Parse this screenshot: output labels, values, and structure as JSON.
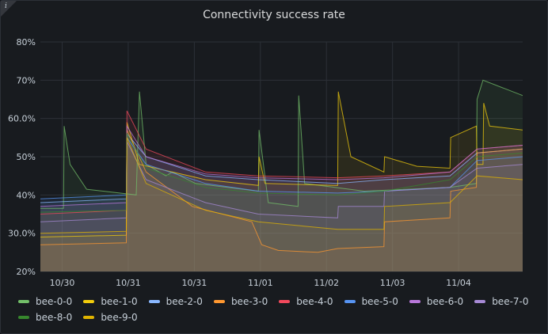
{
  "panel": {
    "title": "Connectivity success rate",
    "info_icon": "info-icon",
    "info_glyph": "i"
  },
  "chart_data": {
    "type": "area",
    "title": "Connectivity success rate",
    "ylim": [
      20,
      80
    ],
    "y_ticks": [
      "20%",
      "30.0%",
      "40%",
      "50%",
      "60.0%",
      "70%",
      "80%"
    ],
    "y_tick_values": [
      20,
      30,
      40,
      50,
      60,
      70,
      80
    ],
    "x_ticks": [
      "10/30",
      "10/31",
      "10/31",
      "11/01",
      "11/02",
      "11/03",
      "11/04"
    ],
    "x_range": [
      0,
      7.3
    ],
    "grid": true,
    "legend_placement": "bottom",
    "series": [
      {
        "name": "bee-0-0",
        "color": "#73bf69",
        "points": [
          [
            0,
            36.5
          ],
          [
            0.35,
            36.5
          ],
          [
            0.36,
            58
          ],
          [
            0.45,
            48
          ],
          [
            0.7,
            41.5
          ],
          [
            1.45,
            40
          ],
          [
            1.5,
            67
          ],
          [
            1.6,
            48
          ],
          [
            1.9,
            45
          ],
          [
            2.0,
            46
          ],
          [
            2.35,
            43
          ],
          [
            3.3,
            41
          ],
          [
            3.31,
            57
          ],
          [
            3.45,
            38
          ],
          [
            3.9,
            37
          ],
          [
            3.91,
            66
          ],
          [
            4.0,
            43
          ],
          [
            4.9,
            41
          ],
          [
            6.2,
            42
          ],
          [
            6.6,
            43
          ],
          [
            6.61,
            65
          ],
          [
            6.7,
            70
          ],
          [
            7.3,
            66
          ]
        ]
      },
      {
        "name": "bee-1-0",
        "color": "#f2cc0c",
        "points": [
          [
            0,
            29
          ],
          [
            1.3,
            29.5
          ],
          [
            1.31,
            59
          ],
          [
            1.5,
            48
          ],
          [
            2.5,
            44
          ],
          [
            3.3,
            42.5
          ],
          [
            3.31,
            50
          ],
          [
            3.4,
            43
          ],
          [
            4.5,
            42.5
          ],
          [
            4.51,
            67
          ],
          [
            4.7,
            50
          ],
          [
            5.2,
            46
          ],
          [
            5.21,
            50
          ],
          [
            5.7,
            47.5
          ],
          [
            6.2,
            47
          ],
          [
            6.21,
            55
          ],
          [
            6.6,
            58
          ],
          [
            6.61,
            48
          ],
          [
            6.7,
            48
          ],
          [
            6.71,
            64
          ],
          [
            6.8,
            58
          ],
          [
            7.3,
            57
          ]
        ]
      },
      {
        "name": "bee-2-0",
        "color": "#8ab8ff",
        "points": [
          [
            0,
            38
          ],
          [
            1.3,
            39
          ],
          [
            1.31,
            56
          ],
          [
            1.6,
            50
          ],
          [
            2.5,
            45
          ],
          [
            3.3,
            44
          ],
          [
            4.5,
            43
          ],
          [
            5.2,
            44
          ],
          [
            6.2,
            45
          ],
          [
            6.61,
            51
          ],
          [
            7.3,
            52
          ]
        ]
      },
      {
        "name": "bee-3-0",
        "color": "#ff9830",
        "points": [
          [
            0,
            27
          ],
          [
            1.3,
            27.5
          ],
          [
            1.31,
            57
          ],
          [
            1.6,
            46
          ],
          [
            2.3,
            37
          ],
          [
            3.2,
            33
          ],
          [
            3.35,
            27
          ],
          [
            3.6,
            25.5
          ],
          [
            4.2,
            25
          ],
          [
            4.5,
            26
          ],
          [
            5.2,
            26.5
          ],
          [
            5.21,
            33
          ],
          [
            6.2,
            34
          ],
          [
            6.21,
            41
          ],
          [
            6.6,
            42
          ],
          [
            6.61,
            51
          ],
          [
            7.3,
            52
          ]
        ]
      },
      {
        "name": "bee-4-0",
        "color": "#f2495c",
        "points": [
          [
            0,
            35
          ],
          [
            1.3,
            36
          ],
          [
            1.31,
            62
          ],
          [
            1.6,
            52
          ],
          [
            2.5,
            46
          ],
          [
            3.3,
            45
          ],
          [
            4.5,
            44.5
          ],
          [
            5.2,
            45
          ],
          [
            6.2,
            46
          ],
          [
            6.61,
            52
          ],
          [
            7.3,
            53
          ]
        ]
      },
      {
        "name": "bee-5-0",
        "color": "#5794f2",
        "points": [
          [
            0,
            39
          ],
          [
            1.3,
            40
          ],
          [
            1.31,
            55
          ],
          [
            1.6,
            48
          ],
          [
            2.5,
            43
          ],
          [
            3.3,
            41
          ],
          [
            4.5,
            40.5
          ],
          [
            5.2,
            41
          ],
          [
            6.2,
            42
          ],
          [
            6.61,
            49
          ],
          [
            7.3,
            50
          ]
        ]
      },
      {
        "name": "bee-6-0",
        "color": "#b877d9",
        "points": [
          [
            0,
            37
          ],
          [
            1.3,
            38
          ],
          [
            1.31,
            58
          ],
          [
            1.6,
            50
          ],
          [
            2.5,
            45.5
          ],
          [
            3.3,
            44.5
          ],
          [
            4.5,
            44
          ],
          [
            5.2,
            44.5
          ],
          [
            6.2,
            46
          ],
          [
            6.61,
            52
          ],
          [
            7.3,
            53
          ]
        ]
      },
      {
        "name": "bee-7-0",
        "color": "#a78ad6",
        "points": [
          [
            0,
            33
          ],
          [
            1.3,
            34
          ],
          [
            1.31,
            54
          ],
          [
            1.6,
            44
          ],
          [
            2.5,
            38
          ],
          [
            3.3,
            35
          ],
          [
            4.5,
            34
          ],
          [
            4.51,
            37
          ],
          [
            5.2,
            37
          ],
          [
            5.21,
            41
          ],
          [
            6.2,
            42
          ],
          [
            6.61,
            47
          ],
          [
            7.3,
            48
          ]
        ]
      },
      {
        "name": "bee-8-0",
        "color": "#37872d",
        "points": [
          [
            0,
            35.5
          ],
          [
            1.3,
            36
          ],
          [
            1.31,
            56
          ],
          [
            1.6,
            47
          ],
          [
            2.5,
            42
          ],
          [
            3.3,
            40.5
          ],
          [
            4.5,
            40
          ],
          [
            5.2,
            41
          ],
          [
            6.2,
            44
          ],
          [
            6.61,
            50
          ],
          [
            7.3,
            51
          ]
        ]
      },
      {
        "name": "bee-9-0",
        "color": "#e0b400",
        "points": [
          [
            0,
            30
          ],
          [
            1.3,
            30.5
          ],
          [
            1.31,
            55
          ],
          [
            1.6,
            43
          ],
          [
            2.5,
            36
          ],
          [
            3.3,
            33
          ],
          [
            4.5,
            31
          ],
          [
            5.2,
            31
          ],
          [
            5.21,
            37
          ],
          [
            6.2,
            38
          ],
          [
            6.61,
            45
          ],
          [
            7.3,
            44
          ]
        ]
      }
    ]
  },
  "legend": {
    "items": [
      {
        "label": "bee-0-0",
        "color": "#73bf69"
      },
      {
        "label": "bee-1-0",
        "color": "#f2cc0c"
      },
      {
        "label": "bee-2-0",
        "color": "#8ab8ff"
      },
      {
        "label": "bee-3-0",
        "color": "#ff9830"
      },
      {
        "label": "bee-4-0",
        "color": "#f2495c"
      },
      {
        "label": "bee-5-0",
        "color": "#5794f2"
      },
      {
        "label": "bee-6-0",
        "color": "#b877d9"
      },
      {
        "label": "bee-7-0",
        "color": "#a78ad6"
      },
      {
        "label": "bee-8-0",
        "color": "#37872d"
      },
      {
        "label": "bee-9-0",
        "color": "#e0b400"
      }
    ]
  }
}
